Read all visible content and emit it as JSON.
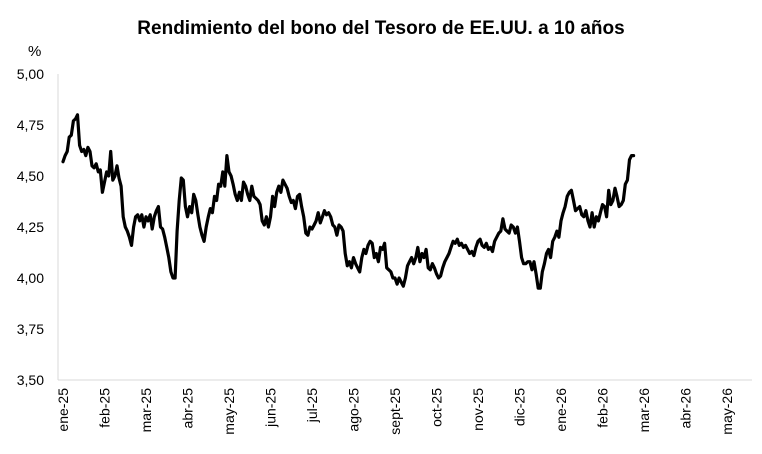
{
  "chart_data": {
    "type": "line",
    "title": "Rendimiento del bono del Tesoro de EE.UU. a 10 años",
    "yunit": "%",
    "ylim": [
      3.5,
      5.0
    ],
    "yticks": [
      "5,00",
      "4,75",
      "4,50",
      "4,25",
      "4,00",
      "3,75",
      "3,50"
    ],
    "ytick_values": [
      5.0,
      4.75,
      4.5,
      4.25,
      4.0,
      3.75,
      3.5
    ],
    "xticks": [
      "ene-25",
      "feb-25",
      "mar-25",
      "abr-25",
      "may-25",
      "jun-25",
      "jul-25",
      "ago-25",
      "sept-25",
      "oct-25",
      "nov-25",
      "dic-25",
      "ene-26",
      "feb-26",
      "mar-26",
      "abr-26",
      "may-26"
    ],
    "grid": false,
    "legend": "none",
    "line_color": "#000000",
    "series": [
      {
        "values": [
          [
            0.0,
            4.57
          ],
          [
            0.05,
            4.6
          ],
          [
            0.1,
            4.62
          ],
          [
            0.15,
            4.69
          ],
          [
            0.2,
            4.7
          ],
          [
            0.25,
            4.77
          ],
          [
            0.3,
            4.78
          ],
          [
            0.35,
            4.8
          ],
          [
            0.4,
            4.65
          ],
          [
            0.45,
            4.62
          ],
          [
            0.5,
            4.63
          ],
          [
            0.55,
            4.6
          ],
          [
            0.6,
            4.64
          ],
          [
            0.65,
            4.62
          ],
          [
            0.7,
            4.55
          ],
          [
            0.75,
            4.54
          ],
          [
            0.8,
            4.56
          ],
          [
            0.85,
            4.52
          ],
          [
            0.9,
            4.53
          ],
          [
            0.95,
            4.42
          ],
          [
            1.0,
            4.47
          ],
          [
            1.05,
            4.52
          ],
          [
            1.1,
            4.5
          ],
          [
            1.15,
            4.62
          ],
          [
            1.2,
            4.48
          ],
          [
            1.25,
            4.5
          ],
          [
            1.3,
            4.55
          ],
          [
            1.35,
            4.49
          ],
          [
            1.4,
            4.45
          ],
          [
            1.45,
            4.3
          ],
          [
            1.5,
            4.25
          ],
          [
            1.55,
            4.23
          ],
          [
            1.6,
            4.2
          ],
          [
            1.65,
            4.16
          ],
          [
            1.7,
            4.25
          ],
          [
            1.75,
            4.3
          ],
          [
            1.8,
            4.31
          ],
          [
            1.85,
            4.28
          ],
          [
            1.9,
            4.31
          ],
          [
            1.95,
            4.25
          ],
          [
            2.0,
            4.3
          ],
          [
            2.05,
            4.28
          ],
          [
            2.1,
            4.31
          ],
          [
            2.15,
            4.24
          ],
          [
            2.2,
            4.3
          ],
          [
            2.25,
            4.33
          ],
          [
            2.3,
            4.35
          ],
          [
            2.35,
            4.25
          ],
          [
            2.4,
            4.24
          ],
          [
            2.45,
            4.2
          ],
          [
            2.5,
            4.15
          ],
          [
            2.55,
            4.1
          ],
          [
            2.6,
            4.03
          ],
          [
            2.65,
            4.0
          ],
          [
            2.7,
            4.0
          ],
          [
            2.75,
            4.23
          ],
          [
            2.8,
            4.38
          ],
          [
            2.85,
            4.49
          ],
          [
            2.9,
            4.48
          ],
          [
            2.95,
            4.35
          ],
          [
            3.0,
            4.3
          ],
          [
            3.05,
            4.35
          ],
          [
            3.1,
            4.32
          ],
          [
            3.15,
            4.41
          ],
          [
            3.2,
            4.38
          ],
          [
            3.25,
            4.31
          ],
          [
            3.3,
            4.25
          ],
          [
            3.35,
            4.21
          ],
          [
            3.4,
            4.18
          ],
          [
            3.45,
            4.25
          ],
          [
            3.5,
            4.3
          ],
          [
            3.55,
            4.34
          ],
          [
            3.6,
            4.32
          ],
          [
            3.65,
            4.4
          ],
          [
            3.7,
            4.38
          ],
          [
            3.75,
            4.46
          ],
          [
            3.8,
            4.45
          ],
          [
            3.85,
            4.52
          ],
          [
            3.9,
            4.45
          ],
          [
            3.95,
            4.6
          ],
          [
            4.0,
            4.52
          ],
          [
            4.05,
            4.5
          ],
          [
            4.1,
            4.46
          ],
          [
            4.15,
            4.41
          ],
          [
            4.2,
            4.38
          ],
          [
            4.25,
            4.42
          ],
          [
            4.3,
            4.38
          ],
          [
            4.35,
            4.47
          ],
          [
            4.4,
            4.45
          ],
          [
            4.45,
            4.41
          ],
          [
            4.5,
            4.38
          ],
          [
            4.55,
            4.45
          ],
          [
            4.6,
            4.4
          ],
          [
            4.65,
            4.39
          ],
          [
            4.7,
            4.38
          ],
          [
            4.75,
            4.36
          ],
          [
            4.8,
            4.28
          ],
          [
            4.85,
            4.26
          ],
          [
            4.9,
            4.3
          ],
          [
            4.95,
            4.25
          ],
          [
            5.0,
            4.3
          ],
          [
            5.05,
            4.4
          ],
          [
            5.1,
            4.35
          ],
          [
            5.15,
            4.42
          ],
          [
            5.2,
            4.45
          ],
          [
            5.25,
            4.42
          ],
          [
            5.3,
            4.48
          ],
          [
            5.35,
            4.46
          ],
          [
            5.4,
            4.44
          ],
          [
            5.45,
            4.4
          ],
          [
            5.5,
            4.37
          ],
          [
            5.55,
            4.38
          ],
          [
            5.6,
            4.34
          ],
          [
            5.65,
            4.4
          ],
          [
            5.7,
            4.41
          ],
          [
            5.75,
            4.35
          ],
          [
            5.8,
            4.3
          ],
          [
            5.85,
            4.22
          ],
          [
            5.9,
            4.21
          ],
          [
            5.95,
            4.25
          ],
          [
            6.0,
            4.24
          ],
          [
            6.05,
            4.26
          ],
          [
            6.1,
            4.28
          ],
          [
            6.15,
            4.32
          ],
          [
            6.2,
            4.27
          ],
          [
            6.25,
            4.3
          ],
          [
            6.3,
            4.33
          ],
          [
            6.35,
            4.31
          ],
          [
            6.4,
            4.32
          ],
          [
            6.45,
            4.3
          ],
          [
            6.5,
            4.26
          ],
          [
            6.55,
            4.25
          ],
          [
            6.6,
            4.21
          ],
          [
            6.65,
            4.26
          ],
          [
            6.7,
            4.25
          ],
          [
            6.75,
            4.23
          ],
          [
            6.8,
            4.12
          ],
          [
            6.85,
            4.06
          ],
          [
            6.9,
            4.08
          ],
          [
            6.95,
            4.05
          ],
          [
            7.0,
            4.1
          ],
          [
            7.05,
            4.07
          ],
          [
            7.1,
            4.05
          ],
          [
            7.15,
            4.03
          ],
          [
            7.2,
            4.1
          ],
          [
            7.25,
            4.14
          ],
          [
            7.3,
            4.12
          ],
          [
            7.35,
            4.16
          ],
          [
            7.4,
            4.18
          ],
          [
            7.45,
            4.17
          ],
          [
            7.5,
            4.1
          ],
          [
            7.55,
            4.12
          ],
          [
            7.6,
            4.08
          ],
          [
            7.65,
            4.15
          ],
          [
            7.7,
            4.14
          ],
          [
            7.75,
            4.17
          ],
          [
            7.8,
            4.05
          ],
          [
            7.85,
            4.04
          ],
          [
            7.9,
            4.03
          ],
          [
            7.95,
            4.0
          ],
          [
            8.0,
            4.0
          ],
          [
            8.05,
            3.97
          ],
          [
            8.1,
            4.0
          ],
          [
            8.15,
            3.98
          ],
          [
            8.2,
            3.96
          ],
          [
            8.25,
            4.0
          ],
          [
            8.3,
            4.06
          ],
          [
            8.35,
            4.08
          ],
          [
            8.4,
            4.1
          ],
          [
            8.45,
            4.07
          ],
          [
            8.5,
            4.1
          ],
          [
            8.55,
            4.15
          ],
          [
            8.6,
            4.08
          ],
          [
            8.65,
            4.12
          ],
          [
            8.7,
            4.1
          ],
          [
            8.75,
            4.14
          ],
          [
            8.8,
            4.05
          ],
          [
            8.85,
            4.04
          ],
          [
            8.9,
            4.07
          ],
          [
            8.95,
            4.05
          ],
          [
            9.0,
            4.02
          ],
          [
            9.05,
            4.0
          ],
          [
            9.1,
            4.01
          ],
          [
            9.15,
            4.05
          ],
          [
            9.2,
            4.08
          ],
          [
            9.25,
            4.1
          ],
          [
            9.3,
            4.12
          ],
          [
            9.35,
            4.15
          ],
          [
            9.4,
            4.18
          ],
          [
            9.45,
            4.17
          ],
          [
            9.5,
            4.19
          ],
          [
            9.55,
            4.16
          ],
          [
            9.6,
            4.17
          ],
          [
            9.65,
            4.15
          ],
          [
            9.7,
            4.16
          ],
          [
            9.75,
            4.14
          ],
          [
            9.8,
            4.12
          ],
          [
            9.85,
            4.13
          ],
          [
            9.9,
            4.11
          ],
          [
            9.95,
            4.15
          ],
          [
            10.0,
            4.18
          ],
          [
            10.05,
            4.19
          ],
          [
            10.1,
            4.16
          ],
          [
            10.15,
            4.15
          ],
          [
            10.2,
            4.17
          ],
          [
            10.25,
            4.14
          ],
          [
            10.3,
            4.15
          ],
          [
            10.35,
            4.13
          ],
          [
            10.4,
            4.18
          ],
          [
            10.45,
            4.2
          ],
          [
            10.5,
            4.22
          ],
          [
            10.55,
            4.23
          ],
          [
            10.6,
            4.29
          ],
          [
            10.65,
            4.24
          ],
          [
            10.7,
            4.23
          ],
          [
            10.75,
            4.22
          ],
          [
            10.8,
            4.26
          ],
          [
            10.85,
            4.25
          ],
          [
            10.9,
            4.22
          ],
          [
            10.95,
            4.25
          ],
          [
            11.0,
            4.18
          ],
          [
            11.05,
            4.1
          ],
          [
            11.1,
            4.07
          ],
          [
            11.15,
            4.07
          ],
          [
            11.2,
            4.08
          ],
          [
            11.25,
            4.08
          ],
          [
            11.3,
            4.04
          ],
          [
            11.35,
            4.08
          ],
          [
            11.4,
            4.02
          ],
          [
            11.45,
            3.95
          ],
          [
            11.5,
            3.95
          ],
          [
            11.55,
            4.03
          ],
          [
            11.6,
            4.07
          ],
          [
            11.65,
            4.12
          ],
          [
            11.7,
            4.14
          ],
          [
            11.75,
            4.1
          ],
          [
            11.8,
            4.18
          ],
          [
            11.85,
            4.2
          ],
          [
            11.9,
            4.23
          ],
          [
            11.95,
            4.2
          ],
          [
            12.0,
            4.28
          ],
          [
            12.05,
            4.32
          ],
          [
            12.1,
            4.35
          ],
          [
            12.15,
            4.4
          ],
          [
            12.2,
            4.42
          ],
          [
            12.25,
            4.43
          ],
          [
            12.3,
            4.38
          ],
          [
            12.35,
            4.33
          ],
          [
            12.4,
            4.34
          ],
          [
            12.45,
            4.35
          ],
          [
            12.5,
            4.31
          ],
          [
            12.55,
            4.3
          ],
          [
            12.6,
            4.33
          ],
          [
            12.65,
            4.28
          ],
          [
            12.7,
            4.25
          ],
          [
            12.75,
            4.32
          ],
          [
            12.8,
            4.25
          ],
          [
            12.85,
            4.3
          ],
          [
            12.9,
            4.28
          ],
          [
            12.95,
            4.32
          ],
          [
            13.0,
            4.36
          ],
          [
            13.05,
            4.35
          ],
          [
            13.1,
            4.3
          ],
          [
            13.15,
            4.43
          ],
          [
            13.2,
            4.36
          ],
          [
            13.25,
            4.38
          ],
          [
            13.3,
            4.44
          ],
          [
            13.35,
            4.4
          ],
          [
            13.4,
            4.35
          ],
          [
            13.45,
            4.36
          ],
          [
            13.5,
            4.38
          ],
          [
            13.55,
            4.46
          ],
          [
            13.6,
            4.48
          ],
          [
            13.65,
            4.58
          ],
          [
            13.7,
            4.6
          ],
          [
            13.75,
            4.6
          ]
        ]
      }
    ]
  }
}
